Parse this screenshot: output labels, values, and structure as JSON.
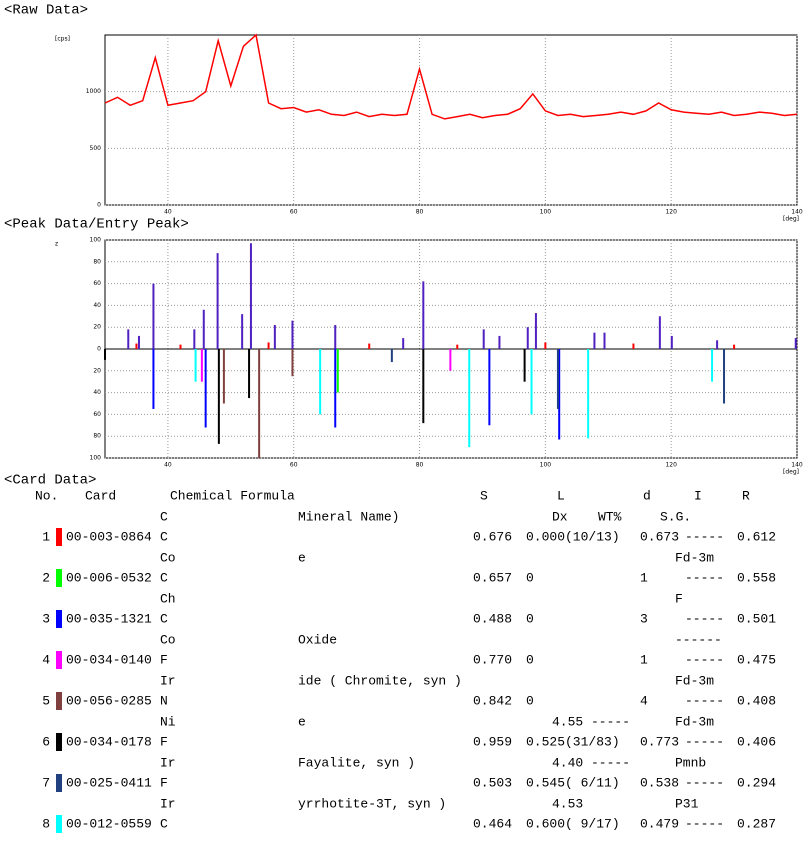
{
  "chart_data": [
    {
      "type": "line",
      "title": "<Raw Data>",
      "y_label": "[cps]",
      "x_label": "[deg]",
      "x": [
        30,
        32,
        34,
        36,
        38,
        40,
        42,
        44,
        46,
        48,
        50,
        52,
        54,
        56,
        58,
        60,
        62,
        64,
        66,
        68,
        70,
        72,
        74,
        76,
        78,
        80,
        82,
        84,
        86,
        88,
        90,
        92,
        94,
        96,
        98,
        100,
        102,
        104,
        106,
        108,
        110,
        112,
        114,
        116,
        118,
        120,
        122,
        124,
        126,
        128,
        130,
        132,
        134,
        136,
        138,
        140
      ],
      "series": [
        {
          "color": "#ff0000",
          "values": [
            900,
            950,
            880,
            920,
            1300,
            880,
            900,
            920,
            1000,
            1450,
            1050,
            1400,
            1500,
            900,
            850,
            860,
            820,
            840,
            800,
            790,
            820,
            780,
            800,
            790,
            800,
            1200,
            800,
            760,
            780,
            800,
            770,
            790,
            800,
            850,
            980,
            830,
            790,
            800,
            780,
            790,
            800,
            820,
            800,
            830,
            900,
            840,
            820,
            810,
            800,
            820,
            790,
            800,
            820,
            810,
            790,
            800
          ]
        }
      ],
      "xlim": [
        30,
        140
      ],
      "ylim": [
        0,
        1500
      ],
      "xticks": [
        40,
        60,
        80,
        100,
        120,
        140
      ],
      "yticks": [
        0,
        500,
        1000
      ],
      "grid": true
    },
    {
      "type": "stick",
      "title": "<Peak Data/Entry Peak>",
      "y_label": "z",
      "x_label": "[deg]",
      "xlim": [
        30,
        140
      ],
      "ylim": [
        -100,
        100
      ],
      "xticks": [
        40,
        60,
        80,
        100,
        120,
        140
      ],
      "yticks": [
        {
          "value": -100,
          "label": "100"
        },
        {
          "value": -80,
          "label": "80"
        },
        {
          "value": -60,
          "label": "60"
        },
        {
          "value": -40,
          "label": "40"
        },
        {
          "value": -20,
          "label": "20"
        },
        0,
        20,
        40,
        60,
        80,
        100
      ],
      "grid": true,
      "series": [
        {
          "color": "#5020c0",
          "x": [
            33.7,
            35.4,
            37.7,
            44.2,
            45.7,
            47.9,
            51.8,
            53.2,
            57.0,
            59.8,
            66.6,
            77.4,
            80.6,
            90.2,
            92.7,
            97.2,
            98.5,
            107.8,
            109.4,
            118.2,
            120.1,
            127.3,
            139.8
          ],
          "values": [
            18,
            12,
            60,
            18,
            36,
            88,
            32,
            97,
            22,
            26,
            22,
            10,
            62,
            18,
            12,
            20,
            33,
            15,
            15,
            30,
            12,
            8,
            10
          ]
        },
        {
          "color": "#ff0000",
          "x": [
            35,
            42,
            56,
            72,
            86,
            100,
            114,
            130
          ],
          "values": [
            5,
            4,
            6,
            5,
            4,
            6,
            5,
            4
          ]
        },
        {
          "color": "#00ff00",
          "x": [
            67.0
          ],
          "values": [
            -40
          ]
        },
        {
          "color": "#0000ff",
          "x": [
            37.7,
            46.0,
            66.6,
            91.1,
            102.2
          ],
          "values": [
            -55,
            -72,
            -72,
            -70,
            -83
          ]
        },
        {
          "color": "#ff00ff",
          "x": [
            45.4,
            84.9
          ],
          "values": [
            -30,
            -20
          ]
        },
        {
          "color": "#804040",
          "x": [
            54.5,
            48.9,
            59.8
          ],
          "values": [
            -100,
            -50,
            -25
          ]
        },
        {
          "color": "#000000",
          "x": [
            48.1,
            80.6,
            96.7,
            30.0,
            52.9
          ],
          "values": [
            -87,
            -68,
            -30,
            -10,
            -45
          ]
        },
        {
          "color": "#204080",
          "x": [
            102.0,
            128.4,
            75.6
          ],
          "values": [
            -55,
            -50,
            -12
          ]
        },
        {
          "color": "#00ffff",
          "x": [
            44.4,
            64.2,
            87.9,
            97.8,
            106.8,
            126.5
          ],
          "values": [
            -30,
            -60,
            -90,
            -60,
            -82,
            -30
          ]
        }
      ]
    }
  ],
  "card_table": {
    "title": "<Card Data>",
    "header1": [
      "No.",
      "Card",
      "Chemical Formula",
      "S",
      "L",
      "d",
      "I",
      "R"
    ],
    "header2": [
      "C",
      "Mineral Name)",
      "Dx",
      "WT%",
      "S.G."
    ],
    "rows": [
      {
        "no": "1",
        "color": "#ff0000",
        "card": "00-003-0864",
        "a": "C",
        "s": "0.676",
        "l": "0.000(10/13)",
        "d": "0.673",
        "i": "-----",
        "r": "0.612",
        "sub": {
          "a": "Co",
          "name": "e",
          "sg": "Fd-3m"
        }
      },
      {
        "no": "2",
        "color": "#00ff00",
        "card": "00-006-0532",
        "a": "C",
        "s": "0.657",
        "l": "0",
        "d": "1",
        "i": "-----",
        "r": "0.558",
        "sub": {
          "a": "Ch",
          "sg": "F"
        }
      },
      {
        "no": "3",
        "color": "#0000ff",
        "card": "00-035-1321",
        "a": "C",
        "s": "0.488",
        "l": "0",
        "d": "3",
        "i": "-----",
        "r": "0.501",
        "sub": {
          "a": "Co",
          "name": "Oxide",
          "sg": "------"
        }
      },
      {
        "no": "4",
        "color": "#ff00ff",
        "card": "00-034-0140",
        "a": "F",
        "s": "0.770",
        "l": "0",
        "d": "1",
        "i": "-----",
        "r": "0.475",
        "sub": {
          "a": "Ir",
          "name": "ide ( Chromite, syn )",
          "sg": "Fd-3m"
        }
      },
      {
        "no": "5",
        "color": "#804040",
        "card": "00-056-0285",
        "a": "N",
        "s": "0.842",
        "l": "0",
        "d": "4",
        "i": "-----",
        "r": "0.408",
        "sub": {
          "a": "Ni",
          "name": "e",
          "dx": "4.55 -----",
          "sg": "Fd-3m"
        }
      },
      {
        "no": "6",
        "color": "#000000",
        "card": "00-034-0178",
        "a": "F",
        "s": "0.959",
        "l": "0.525(31/83)",
        "d": "0.773",
        "i": "-----",
        "r": "0.406",
        "sub": {
          "a": "Ir",
          "name": "Fayalite, syn )",
          "dx": "4.40 -----",
          "sg": "Pmnb"
        }
      },
      {
        "no": "7",
        "color": "#204080",
        "card": "00-025-0411",
        "a": "F",
        "s": "0.503",
        "l": "0.545( 6/11)",
        "d": "0.538",
        "i": "-----",
        "r": "0.294",
        "sub": {
          "a": "Ir",
          "name": "yrrhotite-3T, syn )",
          "dx": "4.53",
          "sg": "P31"
        }
      },
      {
        "no": "8",
        "color": "#00ffff",
        "card": "00-012-0559",
        "a": "C",
        "s": "0.464",
        "l": "0.600( 9/17)",
        "d": "0.479",
        "i": "-----",
        "r": "0.287"
      }
    ]
  }
}
